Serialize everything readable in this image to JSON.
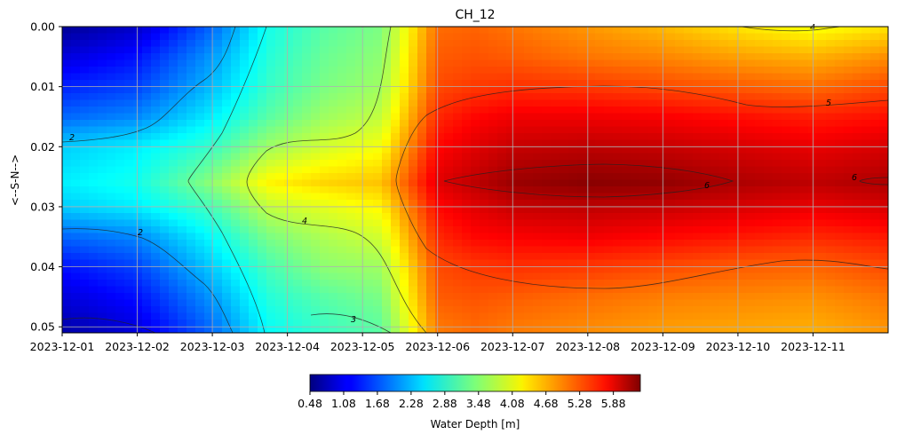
{
  "chart_data": {
    "type": "heatmap",
    "title": "CH_12",
    "xlabel": "",
    "ylabel": "<--S-N-->",
    "x_ticks": [
      "2023-12-01",
      "2023-12-02",
      "2023-12-03",
      "2023-12-04",
      "2023-12-05",
      "2023-12-06",
      "2023-12-07",
      "2023-12-08",
      "2023-12-09",
      "2023-12-10",
      "2023-12-11"
    ],
    "xlim": [
      "2023-12-01",
      "2023-12-12"
    ],
    "y_ticks": [
      "0.00",
      "0.01",
      "0.02",
      "0.03",
      "0.04",
      "0.05"
    ],
    "ylim": [
      0.051,
      0.0
    ],
    "y_axis_inverted": true,
    "grid": true,
    "colormap": "jet",
    "colorbar": {
      "label": "Water Depth [m]",
      "ticks": [
        "0.48",
        "1.08",
        "1.68",
        "2.28",
        "2.88",
        "3.48",
        "4.08",
        "4.68",
        "5.28",
        "5.88"
      ],
      "vmin": 0.48,
      "vmax": 6.36,
      "orientation": "horizontal",
      "placement": "bottom"
    },
    "grid_days": [
      0,
      1,
      2,
      2.75,
      3.5,
      4.25,
      5,
      5.5,
      6,
      7,
      8,
      9,
      10,
      11
    ],
    "grid_y": [
      0.0,
      0.005,
      0.01,
      0.015,
      0.02,
      0.026,
      0.03,
      0.035,
      0.04,
      0.045,
      0.051
    ],
    "z": [
      [
        0.6,
        0.9,
        1.8,
        2.8,
        3.2,
        3.4,
        5.0,
        5.05,
        4.95,
        4.75,
        4.55,
        4.3,
        4.1,
        4.3
      ],
      [
        1.0,
        1.3,
        2.1,
        2.9,
        3.3,
        3.5,
        5.1,
        5.15,
        5.1,
        4.95,
        4.85,
        4.7,
        4.6,
        4.8
      ],
      [
        1.4,
        1.6,
        2.3,
        3.0,
        3.4,
        3.6,
        5.2,
        5.3,
        5.35,
        5.3,
        5.2,
        5.1,
        5.0,
        5.2
      ],
      [
        1.8,
        2.0,
        2.6,
        3.2,
        3.6,
        3.8,
        5.4,
        5.6,
        5.7,
        5.7,
        5.65,
        5.55,
        5.45,
        5.55
      ],
      [
        2.4,
        2.6,
        3.0,
        3.6,
        3.9,
        4.1,
        5.6,
        5.8,
        5.95,
        6.0,
        5.95,
        5.85,
        5.75,
        5.85
      ],
      [
        2.6,
        2.8,
        3.5,
        4.2,
        4.4,
        4.5,
        5.8,
        6.0,
        6.2,
        6.3,
        6.25,
        6.1,
        6.0,
        6.1
      ],
      [
        2.4,
        2.6,
        3.1,
        3.8,
        4.0,
        4.2,
        5.6,
        5.8,
        5.95,
        6.0,
        5.95,
        5.85,
        5.75,
        5.85
      ],
      [
        1.8,
        2.0,
        2.7,
        3.4,
        3.7,
        3.9,
        5.4,
        5.6,
        5.65,
        5.7,
        5.6,
        5.5,
        5.4,
        5.5
      ],
      [
        1.3,
        1.6,
        2.4,
        3.1,
        3.5,
        3.6,
        5.2,
        5.3,
        5.35,
        5.3,
        5.2,
        5.1,
        5.05,
        5.2
      ],
      [
        1.0,
        1.3,
        2.1,
        2.9,
        3.2,
        3.4,
        5.1,
        5.15,
        5.1,
        5.0,
        4.9,
        4.85,
        4.8,
        4.95
      ],
      [
        0.7,
        1.0,
        1.8,
        2.7,
        3.0,
        3.2,
        4.9,
        5.0,
        4.9,
        4.8,
        4.7,
        4.65,
        4.6,
        4.75
      ]
    ],
    "contour_levels": [
      2,
      3,
      4,
      5,
      6
    ],
    "contour_labels": [
      "2",
      "2",
      "3",
      "4",
      "4",
      "5",
      "6",
      "6"
    ]
  }
}
